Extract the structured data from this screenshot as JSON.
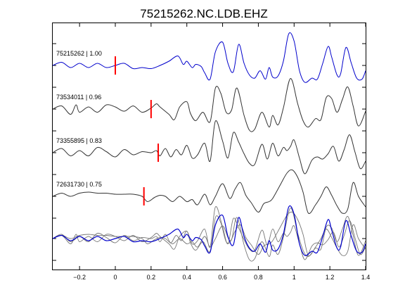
{
  "chart_data": {
    "type": "line",
    "title": "75215262.NC.LDB.EHZ",
    "xlim": [
      -0.35,
      1.4
    ],
    "xticks": [
      -0.2,
      0,
      0.2,
      0.4,
      0.6,
      0.8,
      1,
      1.2,
      1.4
    ],
    "xtick_labels": [
      "−0.2",
      "0",
      "0.2",
      "0.4",
      "0.6",
      "0.8",
      "1",
      "1.2",
      "1.4"
    ],
    "grid": false,
    "colors": {
      "master": "#0000cc",
      "trace": "#333333",
      "overlay": "#777777",
      "pick": "#ff0000"
    },
    "series": [
      {
        "label": "75215262 | 1.00",
        "pick": 0.0,
        "color": "#0000cc",
        "points": [
          [
            -0.35,
            0
          ],
          [
            -0.3,
            0.3
          ],
          [
            -0.25,
            -0.2
          ],
          [
            -0.2,
            0.2
          ],
          [
            -0.15,
            -0.2
          ],
          [
            -0.1,
            0.2
          ],
          [
            -0.05,
            -0.2
          ],
          [
            0,
            0
          ],
          [
            0.05,
            0.2
          ],
          [
            0.1,
            -0.3
          ],
          [
            0.15,
            -0.2
          ],
          [
            0.2,
            -0.3
          ],
          [
            0.25,
            0
          ],
          [
            0.3,
            0.4
          ],
          [
            0.35,
            0.9
          ],
          [
            0.38,
            0.1
          ],
          [
            0.4,
            0.4
          ],
          [
            0.43,
            -0.2
          ],
          [
            0.45,
            0.1
          ],
          [
            0.48,
            -0.1
          ],
          [
            0.5,
            -0.7
          ],
          [
            0.53,
            -1.3
          ],
          [
            0.56,
            1.3
          ],
          [
            0.6,
            2.2
          ],
          [
            0.63,
            0.2
          ],
          [
            0.66,
            -0.6
          ],
          [
            0.69,
            2.0
          ],
          [
            0.72,
            0.2
          ],
          [
            0.75,
            -0.9
          ],
          [
            0.78,
            -1.2
          ],
          [
            0.81,
            -0.5
          ],
          [
            0.84,
            -1.3
          ],
          [
            0.86,
            -0.2
          ],
          [
            0.88,
            -1.1
          ],
          [
            0.91,
            -1.0
          ],
          [
            0.94,
            0.4
          ],
          [
            0.97,
            3.0
          ],
          [
            1.0,
            2.3
          ],
          [
            1.03,
            -0.5
          ],
          [
            1.06,
            -1.6
          ],
          [
            1.1,
            -1.2
          ],
          [
            1.13,
            -1.3
          ],
          [
            1.16,
            0.2
          ],
          [
            1.19,
            1.8
          ],
          [
            1.21,
            0.8
          ],
          [
            1.24,
            -0.9
          ],
          [
            1.26,
            -0.8
          ],
          [
            1.29,
            1.7
          ],
          [
            1.32,
            0.2
          ],
          [
            1.35,
            -1.2
          ],
          [
            1.38,
            -1.3
          ],
          [
            1.4,
            -0.5
          ]
        ]
      },
      {
        "label": "73534011 | 0.96",
        "pick": 0.2,
        "color": "#333333",
        "points": [
          [
            -0.35,
            0
          ],
          [
            -0.3,
            0.3
          ],
          [
            -0.25,
            -0.5
          ],
          [
            -0.22,
            0.4
          ],
          [
            -0.2,
            -0.3
          ],
          [
            -0.15,
            0.2
          ],
          [
            -0.1,
            -0.3
          ],
          [
            -0.05,
            0.4
          ],
          [
            0,
            0.2
          ],
          [
            0.05,
            -0.2
          ],
          [
            0.1,
            0.3
          ],
          [
            0.15,
            -0.3
          ],
          [
            0.2,
            0.1
          ],
          [
            0.23,
            0.5
          ],
          [
            0.25,
            0.2
          ],
          [
            0.3,
            -0.5
          ],
          [
            0.33,
            -1.0
          ],
          [
            0.36,
            0.2
          ],
          [
            0.4,
            0.7
          ],
          [
            0.42,
            -0.4
          ],
          [
            0.45,
            -1.1
          ],
          [
            0.49,
            -0.3
          ],
          [
            0.53,
            -1.2
          ],
          [
            0.56,
            2.0
          ],
          [
            0.59,
            1.5
          ],
          [
            0.62,
            -0.3
          ],
          [
            0.65,
            -0.1
          ],
          [
            0.68,
            2.0
          ],
          [
            0.72,
            -0.6
          ],
          [
            0.75,
            -2.0
          ],
          [
            0.78,
            -1.9
          ],
          [
            0.82,
            -0.3
          ],
          [
            0.86,
            -1.7
          ],
          [
            0.88,
            -0.6
          ],
          [
            0.91,
            -1.5
          ],
          [
            0.94,
            0.1
          ],
          [
            0.98,
            2.9
          ],
          [
            1.02,
            0.5
          ],
          [
            1.05,
            -1.1
          ],
          [
            1.08,
            -1.7
          ],
          [
            1.12,
            -0.9
          ],
          [
            1.15,
            -1.0
          ],
          [
            1.18,
            1.1
          ],
          [
            1.21,
            1.0
          ],
          [
            1.24,
            -0.3
          ],
          [
            1.27,
            0.9
          ],
          [
            1.3,
            2.1
          ],
          [
            1.33,
            0.3
          ],
          [
            1.36,
            -1.6
          ],
          [
            1.4,
            -0.2
          ]
        ]
      },
      {
        "label": "73355895 | 0.83",
        "pick": 0.24,
        "color": "#333333",
        "points": [
          [
            -0.35,
            0
          ],
          [
            -0.3,
            0.4
          ],
          [
            -0.25,
            -0.3
          ],
          [
            -0.2,
            0.2
          ],
          [
            -0.15,
            -0.3
          ],
          [
            -0.1,
            0.5
          ],
          [
            -0.05,
            0.1
          ],
          [
            0,
            -0.4
          ],
          [
            0.05,
            0.3
          ],
          [
            0.1,
            -0.2
          ],
          [
            0.15,
            0.1
          ],
          [
            0.2,
            0
          ],
          [
            0.23,
            0.2
          ],
          [
            0.25,
            -0.3
          ],
          [
            0.28,
            0.4
          ],
          [
            0.31,
            -0.4
          ],
          [
            0.34,
            0.3
          ],
          [
            0.37,
            -0.2
          ],
          [
            0.4,
            0.7
          ],
          [
            0.43,
            -0.5
          ],
          [
            0.46,
            -0.2
          ],
          [
            0.5,
            0.9
          ],
          [
            0.53,
            -0.8
          ],
          [
            0.56,
            3.0
          ],
          [
            0.6,
            1.1
          ],
          [
            0.63,
            -0.5
          ],
          [
            0.66,
            1.9
          ],
          [
            0.69,
            1.0
          ],
          [
            0.72,
            -0.1
          ],
          [
            0.75,
            -1.0
          ],
          [
            0.78,
            -1.1
          ],
          [
            0.82,
            0.8
          ],
          [
            0.85,
            -0.6
          ],
          [
            0.88,
            0.9
          ],
          [
            0.91,
            -0.3
          ],
          [
            0.94,
            0.5
          ],
          [
            0.96,
            0.2
          ],
          [
            0.98,
            0.6
          ],
          [
            1.0,
            1.2
          ],
          [
            1.03,
            -0.5
          ],
          [
            1.06,
            -2.0
          ],
          [
            1.1,
            -0.7
          ],
          [
            1.13,
            -0.4
          ],
          [
            1.16,
            -0.6
          ],
          [
            1.19,
            -0.1
          ],
          [
            1.22,
            0.6
          ],
          [
            1.25,
            -0.8
          ],
          [
            1.28,
            0.3
          ],
          [
            1.31,
            1.7
          ],
          [
            1.34,
            0.1
          ],
          [
            1.37,
            -1.5
          ],
          [
            1.4,
            -0.8
          ]
        ]
      },
      {
        "label": "72631730 | 0.75",
        "pick": 0.16,
        "color": "#333333",
        "points": [
          [
            -0.35,
            0
          ],
          [
            -0.3,
            0.3
          ],
          [
            -0.25,
            0
          ],
          [
            -0.2,
            0.3
          ],
          [
            -0.15,
            0.4
          ],
          [
            -0.1,
            0.3
          ],
          [
            -0.05,
            0.3
          ],
          [
            0,
            0.2
          ],
          [
            0.05,
            0.2
          ],
          [
            0.1,
            0.2
          ],
          [
            0.15,
            0
          ],
          [
            0.18,
            -0.5
          ],
          [
            0.22,
            -0.1
          ],
          [
            0.25,
            0.1
          ],
          [
            0.28,
            0
          ],
          [
            0.32,
            -0.5
          ],
          [
            0.36,
            0
          ],
          [
            0.4,
            -0.5
          ],
          [
            0.43,
            -0.3
          ],
          [
            0.46,
            -0.8
          ],
          [
            0.5,
            0.2
          ],
          [
            0.53,
            -0.8
          ],
          [
            0.56,
            0
          ],
          [
            0.6,
            1.2
          ],
          [
            0.64,
            -0.2
          ],
          [
            0.67,
            0.7
          ],
          [
            0.7,
            1.3
          ],
          [
            0.73,
            0.1
          ],
          [
            0.76,
            -0.6
          ],
          [
            0.8,
            -1.5
          ],
          [
            0.83,
            -0.7
          ],
          [
            0.86,
            -0.5
          ],
          [
            0.88,
            -0.2
          ],
          [
            0.92,
            1.0
          ],
          [
            0.96,
            2.2
          ],
          [
            0.99,
            2.5
          ],
          [
            1.02,
            1.8
          ],
          [
            1.05,
            0.4
          ],
          [
            1.08,
            -1.6
          ],
          [
            1.12,
            -0.8
          ],
          [
            1.15,
            0
          ],
          [
            1.18,
            0.9
          ],
          [
            1.21,
            0.1
          ],
          [
            1.24,
            -0.9
          ],
          [
            1.27,
            -1.6
          ],
          [
            1.3,
            -1.2
          ],
          [
            1.33,
            1.3
          ],
          [
            1.36,
            0
          ],
          [
            1.4,
            -1.0
          ]
        ]
      }
    ]
  }
}
